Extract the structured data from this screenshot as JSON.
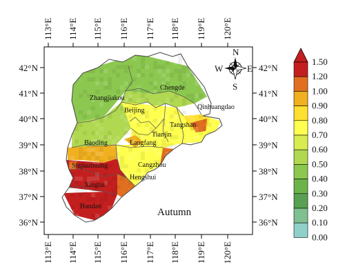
{
  "map": {
    "season_label": "Autumn",
    "lon_ticks": [
      "113°E",
      "114°E",
      "115°E",
      "116°E",
      "117°E",
      "118°E",
      "119°E",
      "120°E"
    ],
    "lat_ticks": [
      "42°N",
      "41°N",
      "40°N",
      "39°N",
      "38°N",
      "37°N",
      "36°N"
    ],
    "compass": {
      "n": "N",
      "s": "S",
      "e": "E",
      "w": "W"
    },
    "cities": [
      {
        "name": "Zhangjiakou"
      },
      {
        "name": "Chengde"
      },
      {
        "name": "Beijing"
      },
      {
        "name": "Qinhuangdao"
      },
      {
        "name": "Tangshan"
      },
      {
        "name": "Tianjin"
      },
      {
        "name": "Langfang"
      },
      {
        "name": "Baoding"
      },
      {
        "name": "Cangzhou"
      },
      {
        "name": "Shijiazhuang"
      },
      {
        "name": "Hengshui"
      },
      {
        "name": "Xingtai"
      },
      {
        "name": "Handan"
      }
    ]
  },
  "legend": {
    "max_label": "1.50",
    "labels": [
      "1.20",
      "1.00",
      "0.90",
      "0.80",
      "0.70",
      "0.60",
      "0.50",
      "0.40",
      "0.30",
      "0.20",
      "0.10",
      "0.00"
    ],
    "colors": [
      "#c41f1f",
      "#e07020",
      "#f0b020",
      "#ffe030",
      "#ffff50",
      "#d8ec50",
      "#b0d850",
      "#8cc850",
      "#6cb44a",
      "#58a052",
      "#80c090",
      "#90d0c8"
    ]
  }
}
